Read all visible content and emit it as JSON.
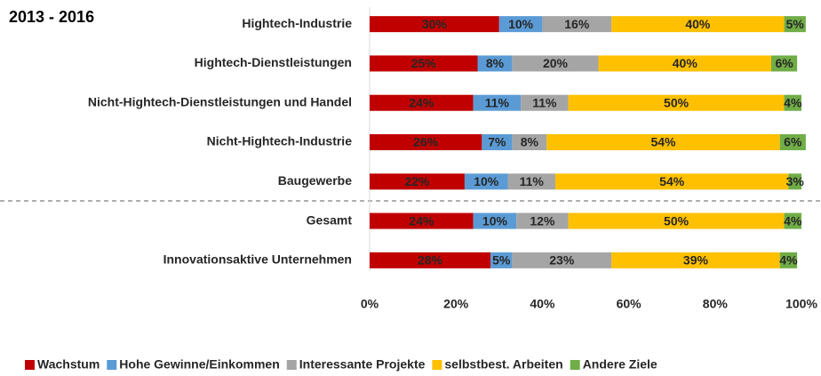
{
  "chart_data": {
    "type": "stacked-barh",
    "title": "2013 - 2016",
    "categories": [
      "Hightech-Industrie",
      "Hightech-Dienstleistungen",
      "Nicht-Hightech-Dienstleistungen und Handel",
      "Nicht-Hightech-Industrie",
      "Baugewerbe",
      "Gesamt",
      "Innovationsaktive Unternehmen"
    ],
    "series": [
      {
        "name": "Wachstum",
        "color": "#c00000",
        "values": [
          30,
          25,
          24,
          26,
          22,
          24,
          28
        ],
        "value_labels": [
          "30%",
          "25%",
          "24%",
          "26%",
          "22%",
          "24%",
          "28%"
        ]
      },
      {
        "name": "Hohe Gewinne/Einkommen",
        "color": "#5b9bd5",
        "values": [
          10,
          8,
          11,
          7,
          10,
          10,
          5
        ],
        "value_labels": [
          "10%",
          "8%",
          "11%",
          "7%",
          "10%",
          "10%",
          "5%"
        ]
      },
      {
        "name": "Interessante Projekte",
        "color": "#a5a5a5",
        "values": [
          16,
          20,
          11,
          8,
          11,
          12,
          23
        ],
        "value_labels": [
          "16%",
          "20%",
          "11%",
          "8%",
          "11%",
          "12%",
          "23%"
        ]
      },
      {
        "name": "selbstbest. Arbeiten",
        "color": "#ffc000",
        "values": [
          40,
          40,
          50,
          54,
          54,
          50,
          39
        ],
        "value_labels": [
          "40%",
          "40%",
          "50%",
          "54%",
          "54%",
          "50%",
          "39%"
        ]
      },
      {
        "name": "Andere Ziele",
        "color": "#70ad47",
        "values": [
          5,
          6,
          4,
          6,
          3,
          4,
          4
        ],
        "value_labels": [
          "5%",
          "6%",
          "4%",
          "6%",
          "3%",
          "4%",
          "4%"
        ]
      }
    ],
    "xlim": [
      0,
      100
    ],
    "xticks": [
      {
        "value": 0,
        "label": "0%"
      },
      {
        "value": 20,
        "label": "20%"
      },
      {
        "value": 40,
        "label": "40%"
      },
      {
        "value": 60,
        "label": "60%"
      },
      {
        "value": 80,
        "label": "80%"
      },
      {
        "value": 100,
        "label": "100%"
      }
    ],
    "grid": false,
    "legend": "bottom"
  }
}
